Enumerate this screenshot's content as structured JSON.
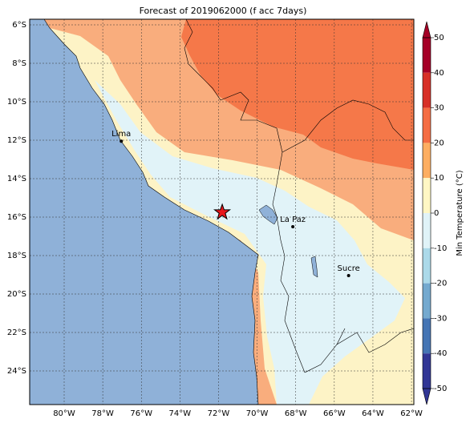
{
  "map": {
    "title": "Forecast of 2019062000 (f acc 7days)",
    "lon_ticks": [
      {
        "value": -80,
        "label": "80°W"
      },
      {
        "value": -78,
        "label": "78°W"
      },
      {
        "value": -76,
        "label": "76°W"
      },
      {
        "value": -74,
        "label": "74°W"
      },
      {
        "value": -72,
        "label": "72°W"
      },
      {
        "value": -70,
        "label": "70°W"
      },
      {
        "value": -68,
        "label": "68°W"
      },
      {
        "value": -66,
        "label": "66°W"
      },
      {
        "value": -64,
        "label": "64°W"
      },
      {
        "value": -62,
        "label": "62°W"
      }
    ],
    "lat_ticks": [
      {
        "value": -6,
        "label": "6°S"
      },
      {
        "value": -8,
        "label": "8°S"
      },
      {
        "value": -10,
        "label": "10°S"
      },
      {
        "value": -12,
        "label": "12°S"
      },
      {
        "value": -14,
        "label": "14°S"
      },
      {
        "value": -16,
        "label": "16°S"
      },
      {
        "value": -18,
        "label": "18°S"
      },
      {
        "value": -20,
        "label": "20°S"
      },
      {
        "value": -22,
        "label": "22°S"
      },
      {
        "value": -24,
        "label": "24°S"
      }
    ],
    "cities": [
      {
        "name": "Lima",
        "lon": -77.04,
        "lat": -12.05
      },
      {
        "name": "La Paz",
        "lon": -68.15,
        "lat": -16.5
      },
      {
        "name": "Sucre",
        "lon": -65.26,
        "lat": -19.04
      }
    ],
    "star": {
      "lon": -71.81,
      "lat": -15.75
    },
    "colorbar": {
      "label": "Min Temperature (°C)",
      "ticks": [
        50,
        40,
        30,
        20,
        10,
        0,
        -10,
        -20,
        -30,
        -40,
        -50
      ],
      "colors": [
        "#a50026",
        "#d73027",
        "#f46d43",
        "#fdae61",
        "#fff7c4",
        "#e0f3f8",
        "#abd9e9",
        "#74a9cf",
        "#4575b4",
        "#313695"
      ]
    }
  }
}
